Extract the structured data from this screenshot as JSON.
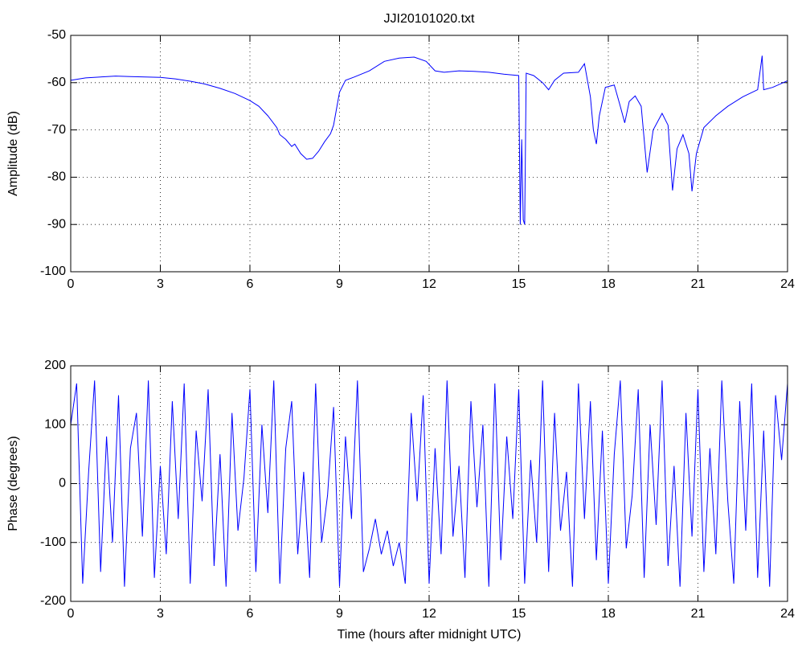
{
  "chart_data": [
    {
      "type": "line",
      "title": "JJI20101020.txt",
      "y_label": "Amplitude (dB)",
      "color": "#0000ff",
      "grid": true,
      "xlim": [
        0,
        24
      ],
      "xticks": [
        0,
        3,
        6,
        9,
        12,
        15,
        18,
        21,
        24
      ],
      "ylim": [
        -100,
        -50
      ],
      "yticks": [
        -100,
        -90,
        -80,
        -70,
        -60,
        -50
      ],
      "x": [
        0,
        0.5,
        1,
        1.5,
        2,
        2.5,
        3,
        3.5,
        4,
        4.5,
        5,
        5.5,
        6,
        6.3,
        6.6,
        6.9,
        7.0,
        7.2,
        7.4,
        7.5,
        7.7,
        7.9,
        8.1,
        8.3,
        8.5,
        8.7,
        8.8,
        9.0,
        9.2,
        9.5,
        10,
        10.5,
        11,
        11.5,
        11.9,
        12.2,
        12.5,
        13,
        13.5,
        14,
        14.5,
        15.0,
        15.05,
        15.1,
        15.15,
        15.2,
        15.25,
        15.5,
        15.8,
        16.0,
        16.2,
        16.5,
        17,
        17.2,
        17.4,
        17.5,
        17.6,
        17.7,
        17.9,
        18.2,
        18.4,
        18.55,
        18.7,
        18.9,
        19.1,
        19.3,
        19.5,
        19.8,
        20.0,
        20.15,
        20.3,
        20.5,
        20.7,
        20.8,
        20.95,
        21.2,
        21.6,
        22,
        22.5,
        23,
        23.15,
        23.2,
        23.5,
        24
      ],
      "values": [
        -59.5,
        -59,
        -58.8,
        -58.6,
        -58.7,
        -58.8,
        -58.9,
        -59.2,
        -59.7,
        -60.3,
        -61.2,
        -62.3,
        -63.8,
        -65,
        -67,
        -69.5,
        -71,
        -72,
        -73.5,
        -73,
        -75,
        -76.2,
        -76,
        -74.5,
        -72.5,
        -70.8,
        -69,
        -62,
        -59.5,
        -58.8,
        -57.5,
        -55.5,
        -54.8,
        -54.6,
        -55.5,
        -57.5,
        -57.8,
        -57.5,
        -57.6,
        -57.8,
        -58.2,
        -58.5,
        -90,
        -72,
        -89,
        -90,
        -58,
        -58.5,
        -60,
        -61.5,
        -59.5,
        -58,
        -57.8,
        -56,
        -63,
        -70,
        -73,
        -67,
        -61,
        -60.5,
        -65,
        -68.5,
        -64,
        -62.8,
        -65,
        -79,
        -70,
        -66.5,
        -69,
        -82.8,
        -74,
        -71,
        -75,
        -83,
        -75,
        -69.5,
        -67,
        -65,
        -63,
        -61.5,
        -54.3,
        -61.5,
        -61,
        -59.6
      ]
    },
    {
      "type": "line",
      "y_label": "Phase (degrees)",
      "x_label": "Time (hours after midnight UTC)",
      "color": "#0000ff",
      "grid": true,
      "xlim": [
        0,
        24
      ],
      "xticks": [
        0,
        3,
        6,
        9,
        12,
        15,
        18,
        21,
        24
      ],
      "ylim": [
        -200,
        200
      ],
      "yticks": [
        -200,
        -100,
        0,
        100,
        200
      ],
      "x": [
        0,
        0.2,
        0.4,
        0.6,
        0.8,
        1,
        1.2,
        1.4,
        1.6,
        1.8,
        2,
        2.2,
        2.4,
        2.6,
        2.8,
        3,
        3.2,
        3.4,
        3.6,
        3.8,
        4,
        4.2,
        4.4,
        4.6,
        4.8,
        5,
        5.2,
        5.4,
        5.6,
        5.8,
        6,
        6.2,
        6.4,
        6.6,
        6.8,
        7,
        7.2,
        7.4,
        7.6,
        7.8,
        8,
        8.2,
        8.4,
        8.6,
        8.8,
        9,
        9.2,
        9.4,
        9.6,
        9.8,
        10,
        10.2,
        10.4,
        10.6,
        10.8,
        11,
        11.2,
        11.4,
        11.6,
        11.8,
        12,
        12.2,
        12.4,
        12.6,
        12.8,
        13,
        13.2,
        13.4,
        13.6,
        13.8,
        14,
        14.2,
        14.4,
        14.6,
        14.8,
        15,
        15.2,
        15.4,
        15.6,
        15.8,
        16,
        16.2,
        16.4,
        16.6,
        16.8,
        17,
        17.2,
        17.4,
        17.6,
        17.8,
        18,
        18.2,
        18.4,
        18.6,
        18.8,
        19,
        19.2,
        19.4,
        19.6,
        19.8,
        20,
        20.2,
        20.4,
        20.6,
        20.8,
        21,
        21.2,
        21.4,
        21.6,
        21.8,
        22,
        22.2,
        22.4,
        22.6,
        22.8,
        23,
        23.2,
        23.4,
        23.6,
        23.8,
        24
      ],
      "values": [
        100,
        170,
        -170,
        20,
        175,
        -150,
        80,
        -100,
        150,
        -175,
        60,
        120,
        -90,
        175,
        -160,
        30,
        -120,
        140,
        -60,
        170,
        -170,
        90,
        -30,
        160,
        -140,
        50,
        -175,
        120,
        -80,
        10,
        160,
        -150,
        100,
        -50,
        175,
        -170,
        60,
        140,
        -120,
        20,
        -160,
        170,
        -100,
        -20,
        130,
        -175,
        80,
        -60,
        175,
        -150,
        -110,
        -60,
        -120,
        -80,
        -140,
        -100,
        -170,
        120,
        -30,
        150,
        -170,
        60,
        -120,
        175,
        -90,
        30,
        -160,
        140,
        -40,
        100,
        -175,
        170,
        -130,
        80,
        -60,
        160,
        -170,
        40,
        -100,
        175,
        -150,
        120,
        -80,
        20,
        -175,
        170,
        -60,
        140,
        -130,
        90,
        -170,
        50,
        175,
        -110,
        -20,
        160,
        -160,
        100,
        -70,
        175,
        -140,
        30,
        -175,
        120,
        -90,
        160,
        -150,
        60,
        -120,
        175,
        -30,
        -170,
        140,
        -80,
        170,
        -160,
        90,
        -175,
        150,
        40,
        170
      ]
    }
  ]
}
